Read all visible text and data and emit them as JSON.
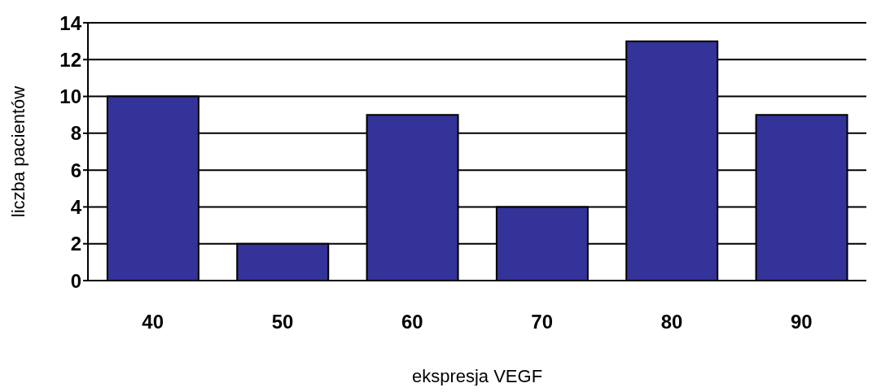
{
  "chart_data": {
    "type": "bar",
    "xlabel": "ekspresja VEGF",
    "ylabel": "liczba pacientów",
    "categories": [
      "40",
      "50",
      "60",
      "70",
      "80",
      "90"
    ],
    "values": [
      10,
      2,
      9,
      4,
      13,
      9
    ],
    "color": "#333399",
    "ylim": [
      0,
      14
    ],
    "yticks": [
      0,
      2,
      4,
      6,
      8,
      10,
      12,
      14
    ],
    "grid": "y"
  }
}
